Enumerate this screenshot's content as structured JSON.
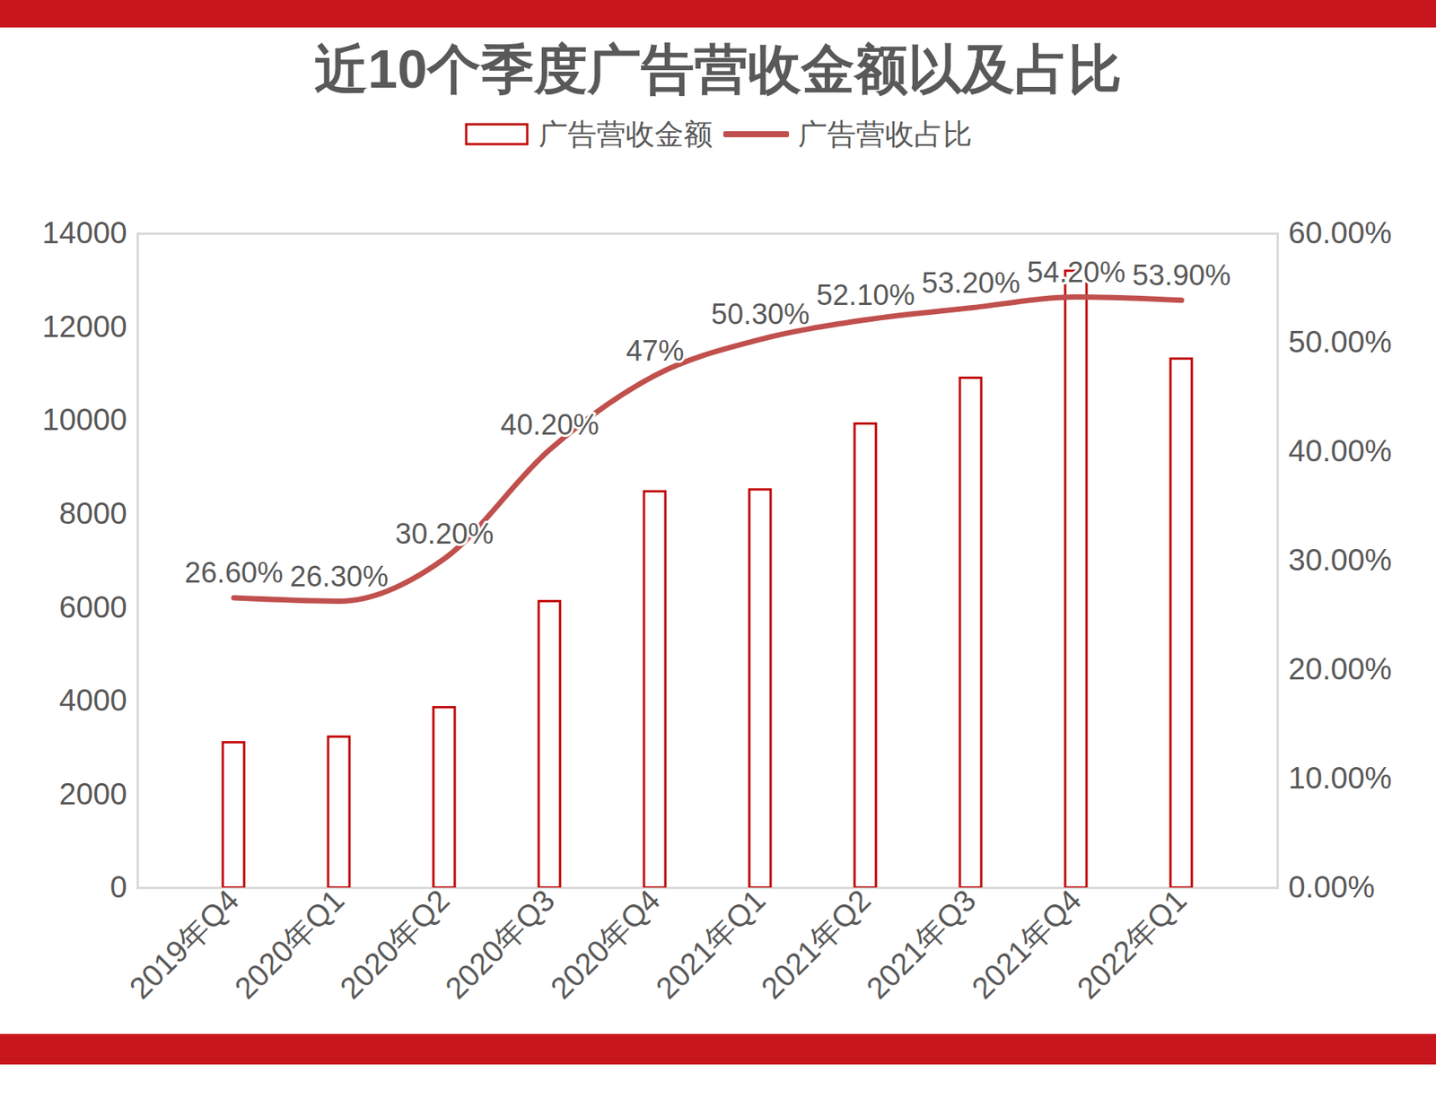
{
  "chart_data": {
    "type": "bar",
    "title": "近10个季度广告营收金额以及占比",
    "categories": [
      "2019年Q4",
      "2020年Q1",
      "2020年Q2",
      "2020年Q3",
      "2020年Q4",
      "2021年Q1",
      "2021年Q2",
      "2021年Q3",
      "2021年Q4",
      "2022年Q1"
    ],
    "series": [
      {
        "name": "广告营收金额",
        "type": "bar",
        "color": "#c00000",
        "values": [
          3110,
          3230,
          3860,
          6130,
          8480,
          8520,
          9930,
          10910,
          13200,
          11320
        ]
      },
      {
        "name": "广告营收占比",
        "type": "line",
        "axis": "y2",
        "color": "#c0504d",
        "data_labels": true,
        "values": [
          26.6,
          26.3,
          30.2,
          40.2,
          47,
          50.3,
          52.1,
          53.2,
          54.2,
          53.9
        ],
        "value_labels": [
          "26.60%",
          "26.30%",
          "30.20%",
          "40.20%",
          "47%",
          "50.30%",
          "52.10%",
          "53.20%",
          "54.20%",
          "53.90%"
        ]
      }
    ],
    "ylim": [
      0,
      14000
    ],
    "yticks": [
      0,
      2000,
      4000,
      6000,
      8000,
      10000,
      12000,
      14000
    ],
    "y2lim": [
      0,
      60
    ],
    "y2ticks": [
      {
        "value": 0,
        "label": "0.00%"
      },
      {
        "value": 10,
        "label": "10.00%"
      },
      {
        "value": 20,
        "label": "20.00%"
      },
      {
        "value": 30,
        "label": "30.00%"
      },
      {
        "value": 40,
        "label": "40.00%"
      },
      {
        "value": 50,
        "label": "50.00%"
      },
      {
        "value": 60,
        "label": "60.00%"
      }
    ],
    "legend": "top",
    "grid": false
  }
}
